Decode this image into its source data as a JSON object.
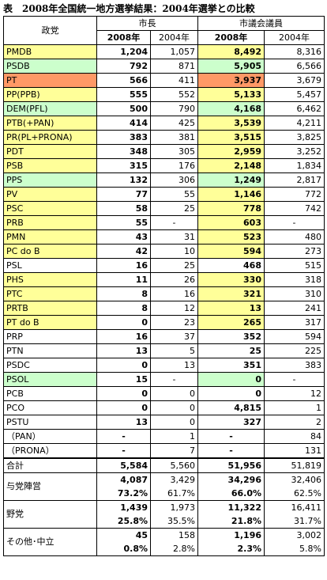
{
  "title": "表　2008年全国統一地方選挙結果：2004年選挙との比較",
  "table": {
    "header": {
      "party": "政党",
      "mayor": "市長",
      "council": "市議会議員",
      "years": [
        "2008年",
        "2004年",
        "2008年",
        "2004年"
      ]
    },
    "rows": [
      {
        "cells": [
          "PMDB",
          "1,204",
          "1,057",
          "8,492",
          "8,316"
        ],
        "color": "#ffff99"
      },
      {
        "cells": [
          "PSDB",
          "792",
          "871",
          "5,905",
          "6,566"
        ],
        "color": "#ccffcc"
      },
      {
        "cells": [
          "PT",
          "566",
          "411",
          "3,937",
          "3,679"
        ],
        "color": "#ff9966"
      },
      {
        "cells": [
          "PP(PPB)",
          "555",
          "552",
          "5,133",
          "5,457"
        ],
        "color": "#ffff99"
      },
      {
        "cells": [
          "DEM(PFL)",
          "500",
          "790",
          "4,168",
          "6,462"
        ],
        "color": "#ccffcc"
      },
      {
        "cells": [
          "PTB(+PAN)",
          "414",
          "425",
          "3,539",
          "4,211"
        ],
        "color": "#ffff99"
      },
      {
        "cells": [
          "PR(PL+PRONA)",
          "383",
          "381",
          "3,515",
          "3,825"
        ],
        "color": "#ffff99"
      },
      {
        "cells": [
          "PDT",
          "348",
          "305",
          "2,959",
          "3,252"
        ],
        "color": "#ffff99"
      },
      {
        "cells": [
          "PSB",
          "315",
          "176",
          "2,148",
          "1,834"
        ],
        "color": "#ffff99"
      },
      {
        "cells": [
          "PPS",
          "132",
          "306",
          "1,249",
          "2,817"
        ],
        "color": "#ccffcc"
      },
      {
        "cells": [
          "PV",
          "77",
          "55",
          "1,146",
          "772"
        ],
        "color": "#ffff99"
      },
      {
        "cells": [
          "PSC",
          "58",
          "25",
          "778",
          "742"
        ],
        "color": "#ffff99"
      },
      {
        "cells": [
          "PRB",
          "55",
          "-",
          "603",
          "-"
        ],
        "color": "#ffff99"
      },
      {
        "cells": [
          "PMN",
          "43",
          "31",
          "523",
          "480"
        ],
        "color": "#ffff99"
      },
      {
        "cells": [
          "PC do B",
          "42",
          "10",
          "594",
          "273"
        ],
        "color": "#ffff99"
      },
      {
        "cells": [
          "PSL",
          "16",
          "25",
          "468",
          "515"
        ]
      },
      {
        "cells": [
          "PHS",
          "11",
          "26",
          "330",
          "318"
        ],
        "color": "#ffff99"
      },
      {
        "cells": [
          "PTC",
          "8",
          "16",
          "321",
          "310"
        ],
        "color": "#ffff99"
      },
      {
        "cells": [
          "PRTB",
          "8",
          "12",
          "13",
          "241"
        ],
        "color": "#ffff99"
      },
      {
        "cells": [
          "PT do B",
          "0",
          "23",
          "265",
          "317"
        ],
        "color": "#ffff99"
      },
      {
        "cells": [
          "PRP",
          "16",
          "37",
          "352",
          "594"
        ]
      },
      {
        "cells": [
          "PTN",
          "13",
          "5",
          "25",
          "225"
        ]
      },
      {
        "cells": [
          "PSDC",
          "0",
          "13",
          "351",
          "383"
        ]
      },
      {
        "cells": [
          "PSOL",
          "15",
          "-",
          "0",
          "-"
        ],
        "color": "#ccffcc"
      },
      {
        "cells": [
          "PCB",
          "0",
          "0",
          "0",
          "12"
        ]
      },
      {
        "cells": [
          "PCO",
          "0",
          "0",
          "4,815",
          "1"
        ]
      },
      {
        "cells": [
          "PSTU",
          "13",
          "0",
          "327",
          "2"
        ]
      },
      {
        "cells": [
          "（PAN）",
          "-",
          "1",
          "-",
          "84"
        ]
      },
      {
        "cells": [
          "（PRONA）",
          "-",
          "7",
          "-",
          "131"
        ]
      },
      {
        "cells": [
          "合計",
          "5,584",
          "5,560",
          "51,956",
          "51,819"
        ]
      }
    ],
    "groups": [
      {
        "label": "与党陣営",
        "counts": [
          "4,087",
          "3,429",
          "34,296",
          "32,406"
        ],
        "shares": [
          "73.2%",
          "61.7%",
          "66.0%",
          "62.5%"
        ]
      },
      {
        "label": "野党",
        "counts": [
          "1,439",
          "1,973",
          "11,322",
          "16,411"
        ],
        "shares": [
          "25.8%",
          "35.5%",
          "21.8%",
          "31.7%"
        ]
      },
      {
        "label": "その他･中立",
        "counts": [
          "45",
          "158",
          "1,196",
          "3,002"
        ],
        "shares": [
          "0.8%",
          "2.8%",
          "2.3%",
          "5.8%"
        ]
      }
    ]
  }
}
